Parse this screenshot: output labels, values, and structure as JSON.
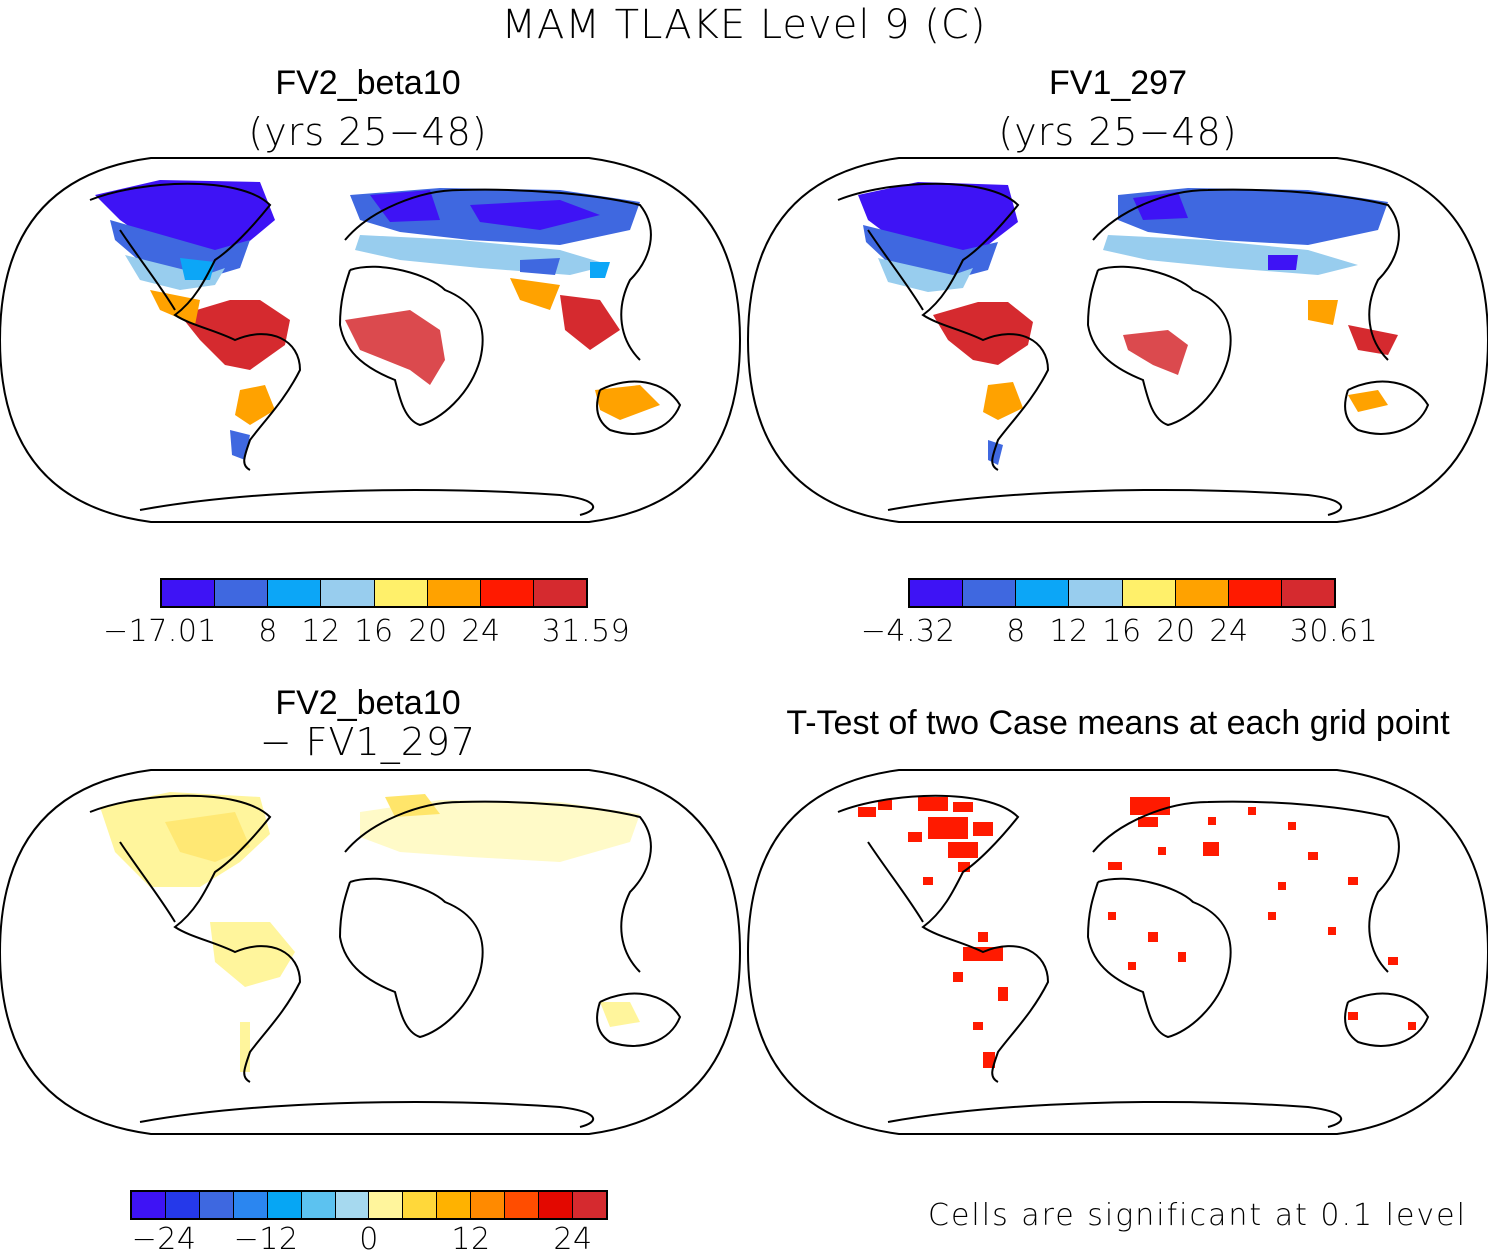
{
  "title": "MAM TLAKE Level 9 (C)",
  "panels": [
    {
      "id": "case1",
      "title": "FV2_beta10",
      "subtitle": "(yrs 25−48)"
    },
    {
      "id": "case2",
      "title": "FV1_297",
      "subtitle": "(yrs 25−48)"
    },
    {
      "id": "diff",
      "title": "FV2_beta10",
      "subtitle": "− FV1_297"
    },
    {
      "id": "ttest",
      "title": "T-Test of two Case means at each grid point",
      "subtitle": ""
    }
  ],
  "colorbars": [
    {
      "id": "case1",
      "colors": [
        "#3e13f5",
        "#3f68e0",
        "#0ca6f7",
        "#98cdee",
        "#fff06a",
        "#ffa200",
        "#ff1a00",
        "#d52a2f"
      ],
      "labels": [
        "−17.01",
        "8",
        "12",
        "16",
        "20",
        "24",
        "31.59"
      ]
    },
    {
      "id": "case2",
      "colors": [
        "#3e13f5",
        "#3f68e0",
        "#0ca6f7",
        "#98cdee",
        "#fff06a",
        "#ffa200",
        "#ff1a00",
        "#d52a2f"
      ],
      "labels": [
        "−4.32",
        "8",
        "12",
        "16",
        "20",
        "24",
        "30.61"
      ]
    },
    {
      "id": "diff",
      "colors": [
        "#3e13f5",
        "#2539ea",
        "#3e68e0",
        "#2b86f0",
        "#06a6f4",
        "#5cc2f0",
        "#a6d9ef",
        "#fff59c",
        "#ffd83a",
        "#ffb200",
        "#ff8a00",
        "#ff4d00",
        "#e30800",
        "#d52a2f"
      ],
      "labels": [
        "−24",
        "−12",
        "0",
        "12",
        "24"
      ]
    }
  ],
  "ttest_note": "Cells are significant at 0.1 level"
}
